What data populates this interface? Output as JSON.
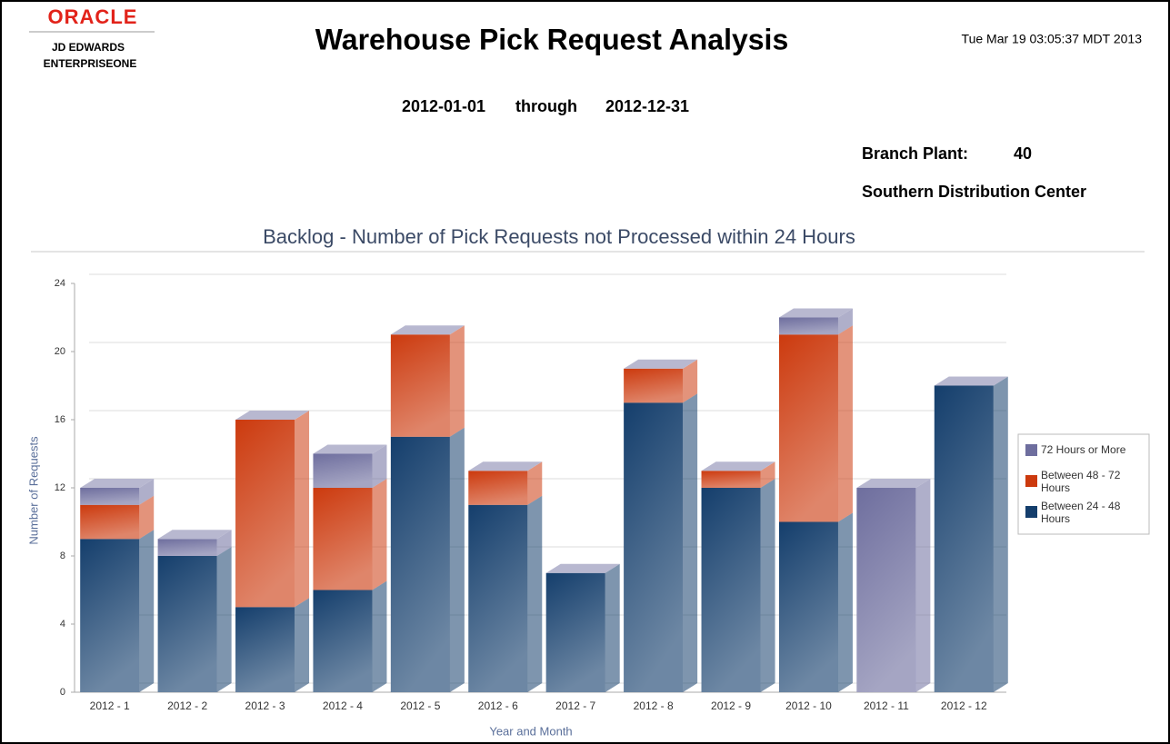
{
  "header": {
    "logo": "ORACLE",
    "product1": "JD EDWARDS",
    "product2": "ENTERPRISEONE",
    "title": "Warehouse Pick Request Analysis",
    "timestamp": "Tue Mar 19 03:05:37 MDT 2013",
    "date_from": "2012-01-01",
    "through": "through",
    "date_to": "2012-12-31",
    "branch_label": "Branch Plant:",
    "branch_value": "40",
    "branch_name": "Southern Distribution Center"
  },
  "chart_data": {
    "type": "bar3d_stacked",
    "title": "Backlog - Number of Pick Requests not Processed within 24 Hours",
    "x_label": "Year and Month",
    "y_label": "Number of Requests",
    "categories": [
      "2012 - 1",
      "2012 - 2",
      "2012 - 3",
      "2012 - 4",
      "2012 - 5",
      "2012 - 6",
      "2012 - 7",
      "2012 - 8",
      "2012 - 9",
      "2012 - 10",
      "2012 - 11",
      "2012 - 12"
    ],
    "series": [
      {
        "name": "72 Hours or More",
        "color": "#6e6e9e",
        "values": [
          1,
          1,
          0,
          2,
          0,
          0,
          0,
          0,
          0,
          1,
          12,
          0
        ]
      },
      {
        "name": "Between 48 - 72 Hours",
        "color": "#cc3a0e",
        "values": [
          2,
          0,
          11,
          6,
          6,
          2,
          0,
          2,
          1,
          11,
          0,
          0
        ]
      },
      {
        "name": "Between 24 - 48 Hours",
        "color": "#143e6c",
        "values": [
          9,
          8,
          5,
          6,
          15,
          11,
          7,
          17,
          12,
          10,
          0,
          18
        ]
      }
    ],
    "ylim": [
      0,
      24
    ],
    "yticks": [
      0,
      4,
      8,
      12,
      16,
      20,
      24
    ],
    "grid": true,
    "legend": "right"
  }
}
